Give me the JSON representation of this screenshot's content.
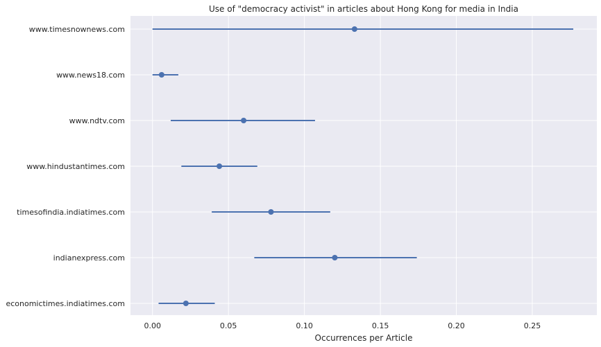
{
  "chart_data": {
    "type": "scatter",
    "title": "Use of \"democracy activist\" in articles about Hong Kong for media in India",
    "xlabel": "Occurrences per Article",
    "ylabel": "",
    "xlim": [
      -0.0145,
      0.2925
    ],
    "xticks": [
      0.0,
      0.05,
      0.1,
      0.15,
      0.2,
      0.25
    ],
    "xtick_labels": [
      "0.00",
      "0.05",
      "0.10",
      "0.15",
      "0.20",
      "0.25"
    ],
    "grid": true,
    "categories": [
      "www.timesnownews.com",
      "www.news18.com",
      "www.ndtv.com",
      "www.hindustantimes.com",
      "timesofindia.indiatimes.com",
      "indianexpress.com",
      "economictimes.indiatimes.com"
    ],
    "values": [
      0.133,
      0.006,
      0.06,
      0.044,
      0.078,
      0.12,
      0.022
    ],
    "lower": [
      0.0,
      0.0,
      0.012,
      0.019,
      0.039,
      0.067,
      0.004
    ],
    "upper": [
      0.277,
      0.017,
      0.107,
      0.069,
      0.117,
      0.174,
      0.041
    ],
    "colors": {
      "background": "#eaeaf2",
      "grid": "#ffffff",
      "marker": "#4c72b0"
    }
  }
}
